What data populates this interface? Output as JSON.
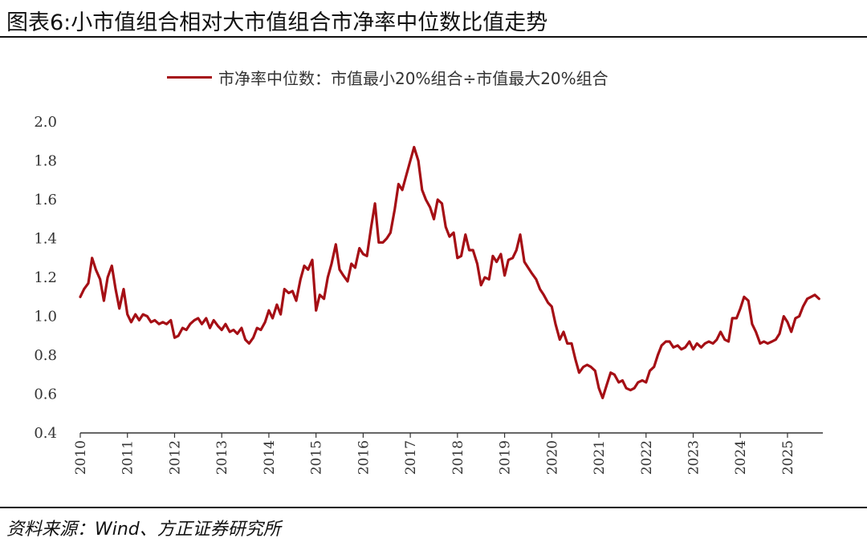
{
  "title": "图表6:小市值组合相对大市值组合市净率中位数比值走势",
  "source": "资料来源：Wind、方正证券研究所",
  "colors": {
    "series": "#a50f15",
    "axis": "#333333"
  },
  "chart_data": {
    "type": "line",
    "title": "图表6:小市值组合相对大市值组合市净率中位数比值走势",
    "xlabel": "",
    "ylabel": "",
    "xlim": [
      2010.0,
      2025.75
    ],
    "ylim": [
      0.4,
      2.0
    ],
    "yticks": [
      "0.4",
      "0.6",
      "0.8",
      "1.0",
      "1.2",
      "1.4",
      "1.6",
      "1.8",
      "2.0"
    ],
    "xticks": [
      "2010",
      "2011",
      "2012",
      "2013",
      "2014",
      "2015",
      "2016",
      "2017",
      "2018",
      "2019",
      "2020",
      "2021",
      "2022",
      "2023",
      "2024",
      "2025"
    ],
    "grid": false,
    "legend_position": "top-center",
    "series": [
      {
        "name": "市净率中位数：市值最小20%组合÷市值最大20%组合",
        "x": [
          2010.0,
          2010.08,
          2010.17,
          2010.25,
          2010.33,
          2010.42,
          2010.5,
          2010.58,
          2010.67,
          2010.75,
          2010.83,
          2010.92,
          2011.0,
          2011.08,
          2011.17,
          2011.25,
          2011.33,
          2011.42,
          2011.5,
          2011.58,
          2011.67,
          2011.75,
          2011.83,
          2011.92,
          2012.0,
          2012.08,
          2012.17,
          2012.25,
          2012.33,
          2012.42,
          2012.5,
          2012.58,
          2012.67,
          2012.75,
          2012.83,
          2012.92,
          2013.0,
          2013.08,
          2013.17,
          2013.25,
          2013.33,
          2013.42,
          2013.5,
          2013.58,
          2013.67,
          2013.75,
          2013.83,
          2013.92,
          2014.0,
          2014.08,
          2014.17,
          2014.25,
          2014.33,
          2014.42,
          2014.5,
          2014.58,
          2014.67,
          2014.75,
          2014.83,
          2014.92,
          2015.0,
          2015.08,
          2015.17,
          2015.25,
          2015.33,
          2015.42,
          2015.5,
          2015.58,
          2015.67,
          2015.75,
          2015.83,
          2015.92,
          2016.0,
          2016.08,
          2016.17,
          2016.25,
          2016.33,
          2016.42,
          2016.5,
          2016.58,
          2016.67,
          2016.75,
          2016.83,
          2016.92,
          2017.0,
          2017.08,
          2017.17,
          2017.25,
          2017.33,
          2017.42,
          2017.5,
          2017.58,
          2017.67,
          2017.75,
          2017.83,
          2017.92,
          2018.0,
          2018.08,
          2018.17,
          2018.25,
          2018.33,
          2018.42,
          2018.5,
          2018.58,
          2018.67,
          2018.75,
          2018.83,
          2018.92,
          2019.0,
          2019.08,
          2019.17,
          2019.25,
          2019.33,
          2019.42,
          2019.5,
          2019.58,
          2019.67,
          2019.75,
          2019.83,
          2019.92,
          2020.0,
          2020.08,
          2020.17,
          2020.25,
          2020.33,
          2020.42,
          2020.5,
          2020.58,
          2020.67,
          2020.75,
          2020.83,
          2020.92,
          2021.0,
          2021.08,
          2021.17,
          2021.25,
          2021.33,
          2021.42,
          2021.5,
          2021.58,
          2021.67,
          2021.75,
          2021.83,
          2021.92,
          2022.0,
          2022.08,
          2022.17,
          2022.25,
          2022.33,
          2022.42,
          2022.5,
          2022.58,
          2022.67,
          2022.75,
          2022.83,
          2022.92,
          2023.0,
          2023.08,
          2023.17,
          2023.25,
          2023.33,
          2023.42,
          2023.5,
          2023.58,
          2023.67,
          2023.75,
          2023.83,
          2023.92,
          2024.0,
          2024.08,
          2024.17,
          2024.25,
          2024.33,
          2024.42,
          2024.5,
          2024.58,
          2024.67,
          2024.75,
          2024.83,
          2024.92,
          2025.0,
          2025.08,
          2025.17,
          2025.25,
          2025.33,
          2025.42,
          2025.5,
          2025.58,
          2025.67
        ],
        "values": [
          1.1,
          1.14,
          1.17,
          1.3,
          1.24,
          1.19,
          1.08,
          1.2,
          1.26,
          1.14,
          1.04,
          1.14,
          1.01,
          0.97,
          1.01,
          0.98,
          1.01,
          1.0,
          0.97,
          0.98,
          0.96,
          0.97,
          0.96,
          0.98,
          0.89,
          0.9,
          0.94,
          0.93,
          0.96,
          0.98,
          0.99,
          0.96,
          0.99,
          0.94,
          0.98,
          0.95,
          0.93,
          0.96,
          0.92,
          0.93,
          0.91,
          0.94,
          0.88,
          0.86,
          0.89,
          0.94,
          0.93,
          0.97,
          1.03,
          0.99,
          1.06,
          1.01,
          1.14,
          1.12,
          1.13,
          1.08,
          1.19,
          1.26,
          1.24,
          1.29,
          1.03,
          1.11,
          1.09,
          1.2,
          1.27,
          1.37,
          1.24,
          1.21,
          1.18,
          1.27,
          1.25,
          1.35,
          1.32,
          1.31,
          1.46,
          1.58,
          1.38,
          1.38,
          1.4,
          1.43,
          1.55,
          1.68,
          1.65,
          1.73,
          1.8,
          1.87,
          1.8,
          1.65,
          1.6,
          1.56,
          1.5,
          1.6,
          1.58,
          1.46,
          1.41,
          1.43,
          1.3,
          1.31,
          1.42,
          1.34,
          1.34,
          1.27,
          1.16,
          1.2,
          1.19,
          1.31,
          1.28,
          1.32,
          1.21,
          1.29,
          1.3,
          1.34,
          1.42,
          1.28,
          1.25,
          1.22,
          1.19,
          1.14,
          1.11,
          1.07,
          1.05,
          0.96,
          0.88,
          0.92,
          0.86,
          0.86,
          0.78,
          0.71,
          0.74,
          0.75,
          0.74,
          0.72,
          0.63,
          0.58,
          0.65,
          0.71,
          0.7,
          0.66,
          0.67,
          0.63,
          0.62,
          0.63,
          0.66,
          0.67,
          0.66,
          0.72,
          0.74,
          0.8,
          0.85,
          0.87,
          0.87,
          0.84,
          0.85,
          0.83,
          0.84,
          0.87,
          0.83,
          0.86,
          0.84,
          0.86,
          0.87,
          0.86,
          0.88,
          0.92,
          0.88,
          0.87,
          0.99,
          0.99,
          1.04,
          1.1,
          1.08,
          0.96,
          0.92,
          0.86,
          0.87,
          0.86,
          0.87,
          0.88,
          0.91,
          1.0,
          0.97,
          0.92,
          0.99,
          1.0,
          1.05,
          1.09,
          1.1,
          1.11,
          1.09
        ]
      }
    ]
  }
}
